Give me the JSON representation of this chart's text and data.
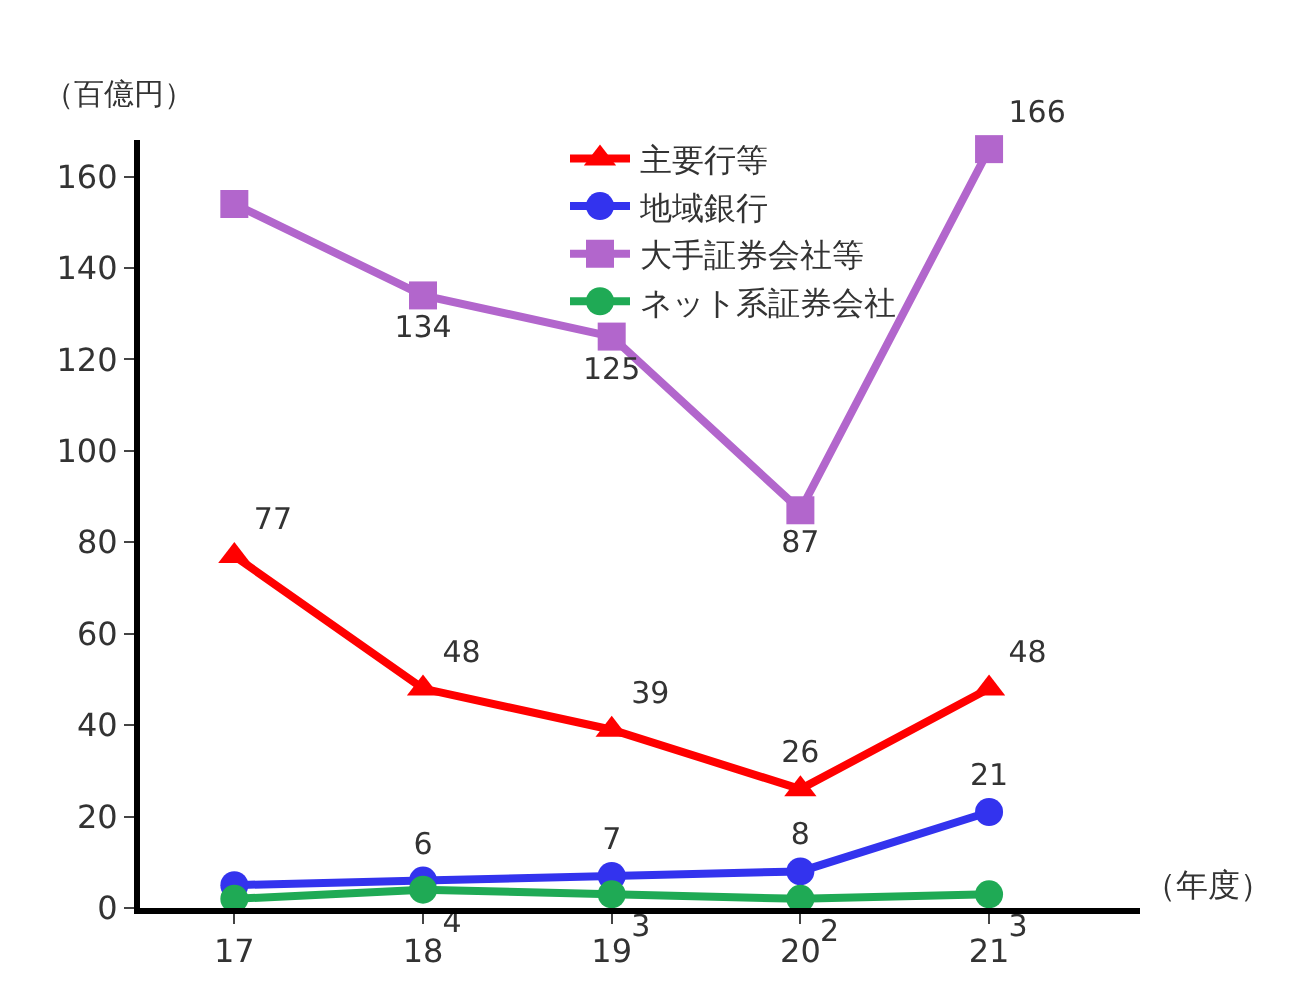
{
  "chart_data": {
    "type": "line",
    "ylabel": "（百億円）",
    "xlabel": "（年度）",
    "categories": [
      "17",
      "18",
      "19",
      "20",
      "21"
    ],
    "ylim": [
      0,
      168
    ],
    "yticks": [
      0,
      20,
      40,
      60,
      80,
      100,
      120,
      140,
      160
    ],
    "grid": false,
    "legend": "top",
    "line_style": "solid",
    "series": [
      {
        "name": "主要行等",
        "color": "#ff0000",
        "marker": "triangle",
        "values": [
          77,
          48,
          39,
          26,
          48
        ],
        "value_labels": [
          "77",
          "48",
          "39",
          "26",
          "48"
        ]
      },
      {
        "name": "地域銀行",
        "color": "#3333ee",
        "marker": "circle",
        "values": [
          5,
          6,
          7,
          8,
          21
        ],
        "value_labels": [
          null,
          "6",
          "7",
          "8",
          "21"
        ]
      },
      {
        "name": "大手証券会社等",
        "color": "#b266cc",
        "marker": "square",
        "values": [
          154,
          134,
          125,
          87,
          166
        ],
        "value_labels": [
          null,
          "134",
          "125",
          "87",
          "166"
        ]
      },
      {
        "name": "ネット系証券会社",
        "color": "#1faa55",
        "marker": "circle",
        "values": [
          2,
          4,
          3,
          2,
          3
        ],
        "value_labels": [
          null,
          "4",
          "3",
          "2",
          "3"
        ]
      }
    ]
  }
}
